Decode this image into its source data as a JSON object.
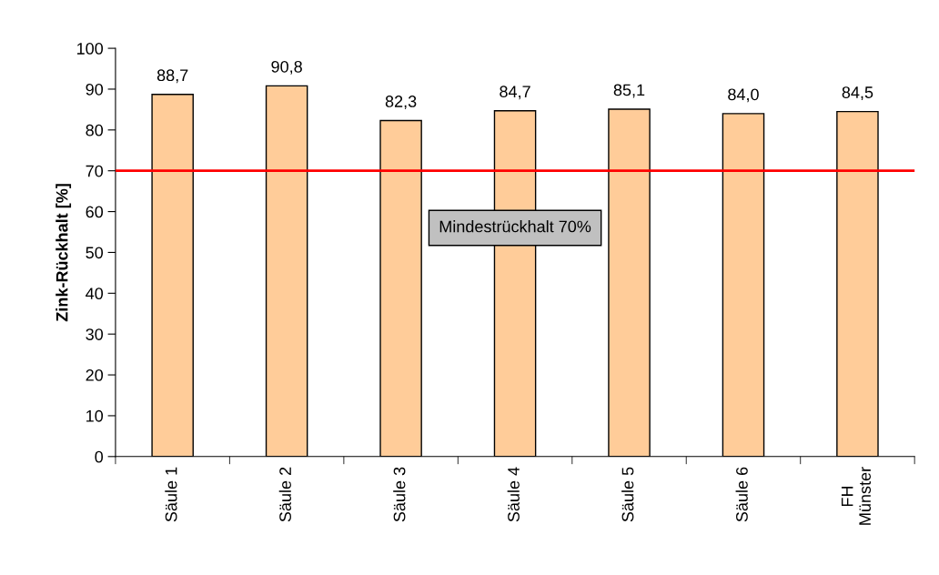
{
  "chart_data": {
    "type": "bar",
    "ylabel": "Zink-Rückhalt [%]",
    "categories": [
      "Säule 1",
      "Säule 2",
      "Säule 3",
      "Säule 4",
      "Säule 5",
      "Säule 6",
      "FH\nMünster"
    ],
    "values": [
      88.7,
      90.8,
      82.3,
      84.7,
      85.1,
      84.0,
      84.5
    ],
    "value_labels": [
      "88,7",
      "90,8",
      "82,3",
      "84,7",
      "85,1",
      "84,0",
      "84,5"
    ],
    "color": "#ffcc99",
    "ylim": [
      0,
      100
    ],
    "yticks": [
      0,
      10,
      20,
      30,
      40,
      50,
      60,
      70,
      80,
      90,
      100
    ],
    "ref_lines": [
      {
        "axis": "y",
        "value": 70,
        "color": "#ff0000"
      }
    ],
    "annotations": [
      "Mindestrückhalt 70%"
    ],
    "grid": false,
    "legend": false
  }
}
